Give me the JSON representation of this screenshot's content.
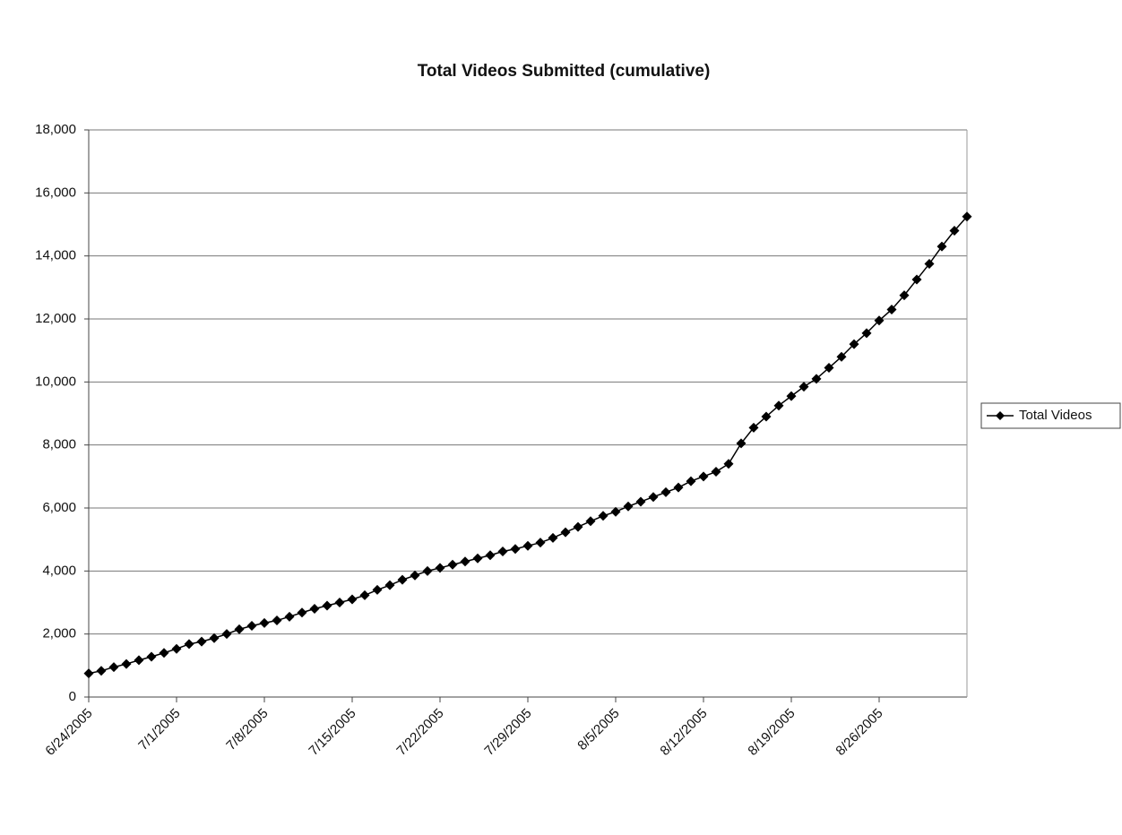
{
  "chart_data": {
    "type": "line",
    "title": "Total Videos Submitted (cumulative)",
    "x": [
      "6/24/2005",
      "6/25/2005",
      "6/26/2005",
      "6/27/2005",
      "6/28/2005",
      "6/29/2005",
      "6/30/2005",
      "7/1/2005",
      "7/2/2005",
      "7/3/2005",
      "7/4/2005",
      "7/5/2005",
      "7/6/2005",
      "7/7/2005",
      "7/8/2005",
      "7/9/2005",
      "7/10/2005",
      "7/11/2005",
      "7/12/2005",
      "7/13/2005",
      "7/14/2005",
      "7/15/2005",
      "7/16/2005",
      "7/17/2005",
      "7/18/2005",
      "7/19/2005",
      "7/20/2005",
      "7/21/2005",
      "7/22/2005",
      "7/23/2005",
      "7/24/2005",
      "7/25/2005",
      "7/26/2005",
      "7/27/2005",
      "7/28/2005",
      "7/29/2005",
      "7/30/2005",
      "7/31/2005",
      "8/1/2005",
      "8/2/2005",
      "8/3/2005",
      "8/4/2005",
      "8/5/2005",
      "8/6/2005",
      "8/7/2005",
      "8/8/2005",
      "8/9/2005",
      "8/10/2005",
      "8/11/2005",
      "8/12/2005",
      "8/13/2005",
      "8/14/2005",
      "8/15/2005",
      "8/16/2005",
      "8/17/2005",
      "8/18/2005",
      "8/19/2005",
      "8/20/2005",
      "8/21/2005",
      "8/22/2005",
      "8/23/2005",
      "8/24/2005",
      "8/25/2005",
      "8/26/2005",
      "8/27/2005",
      "8/28/2005",
      "8/29/2005",
      "8/30/2005",
      "8/31/2005",
      "9/1/2005",
      "9/2/2005"
    ],
    "series": [
      {
        "name": "Total Videos",
        "color": "#000000",
        "values": [
          750,
          830,
          950,
          1050,
          1170,
          1280,
          1400,
          1530,
          1680,
          1760,
          1870,
          2000,
          2150,
          2260,
          2350,
          2430,
          2550,
          2680,
          2800,
          2900,
          3000,
          3100,
          3230,
          3400,
          3550,
          3720,
          3860,
          4000,
          4100,
          4200,
          4300,
          4400,
          4500,
          4620,
          4700,
          4800,
          4900,
          5050,
          5230,
          5400,
          5580,
          5750,
          5880,
          6050,
          6200,
          6350,
          6500,
          6650,
          6850,
          7000,
          7150,
          7400,
          8050,
          8550,
          8900,
          9250,
          9550,
          9850,
          10100,
          10450,
          10800,
          11200,
          11550,
          11950,
          12300,
          12750,
          13250,
          13750,
          14300,
          14800,
          15250
        ]
      }
    ],
    "xlim": [
      "6/24/2005",
      "9/2/2005"
    ],
    "xticks": [
      "6/24/2005",
      "7/1/2005",
      "7/8/2005",
      "7/15/2005",
      "7/22/2005",
      "7/29/2005",
      "8/5/2005",
      "8/12/2005",
      "8/19/2005",
      "8/26/2005"
    ],
    "ylim": [
      0,
      18000
    ],
    "yticks": [
      0,
      {
        "value": 2000,
        "label": "2,000"
      },
      {
        "value": 4000,
        "label": "4,000"
      },
      {
        "value": 6000,
        "label": "6,000"
      },
      {
        "value": 8000,
        "label": "8,000"
      },
      {
        "value": 10000,
        "label": "10,000"
      },
      {
        "value": 12000,
        "label": "12,000"
      },
      {
        "value": 14000,
        "label": "14,000"
      },
      {
        "value": 16000,
        "label": "16,000"
      },
      {
        "value": 18000,
        "label": "18,000"
      }
    ],
    "grid": true,
    "legend": "right"
  }
}
